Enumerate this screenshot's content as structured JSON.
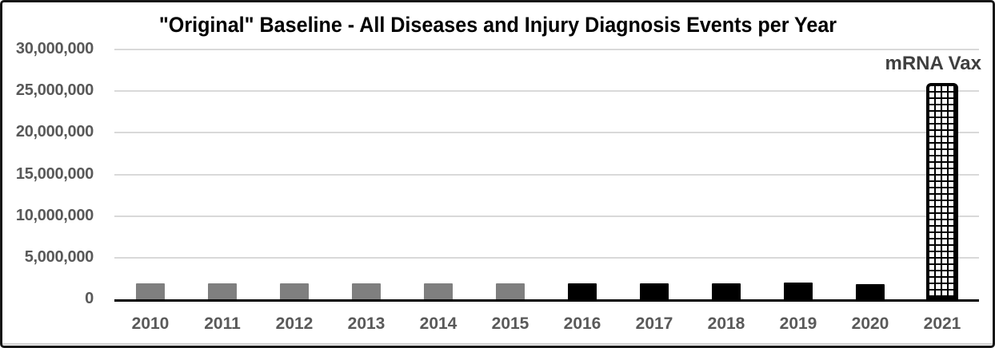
{
  "chart_data": {
    "type": "bar",
    "title": "\"Original\" Baseline - All Diseases and Injury Diagnosis Events per Year",
    "categories": [
      "2010",
      "2011",
      "2012",
      "2013",
      "2014",
      "2015",
      "2016",
      "2017",
      "2018",
      "2019",
      "2020",
      "2021"
    ],
    "values": [
      1900000,
      1900000,
      1900000,
      1900000,
      1900000,
      1900000,
      1900000,
      1900000,
      1900000,
      2000000,
      1800000,
      26000000
    ],
    "bar_styles": [
      "gray",
      "gray",
      "gray",
      "gray",
      "gray",
      "gray",
      "black",
      "black",
      "black",
      "black",
      "black",
      "grid-pattern"
    ],
    "xlabel": "",
    "ylabel": "",
    "ylim": [
      0,
      30000000
    ],
    "ytick_interval": 5000000,
    "ytick_values": [
      30000000,
      25000000,
      20000000,
      15000000,
      10000000,
      5000000,
      0
    ],
    "ytick_labels": [
      "30,000,000",
      "25,000,000",
      "20,000,000",
      "15,000,000",
      "10,000,000",
      "5,000,000",
      "0"
    ],
    "grid": "horizontal",
    "legend": "none",
    "annotations": [
      {
        "text": "mRNA Vax",
        "target_category": "2021",
        "position": "above-bar"
      }
    ],
    "colors": {
      "gray_bar": "#7f7f7f",
      "black_bar": "#000000",
      "pattern_bar_grid": "#000000",
      "pattern_bar_fill": "#ffffff",
      "tick_label": "#595959",
      "title": "#000000",
      "annotation": "#3f3f3f",
      "gridline": "#d9d9d9",
      "axis_line": "#000000",
      "frame_border": "#161616"
    }
  }
}
